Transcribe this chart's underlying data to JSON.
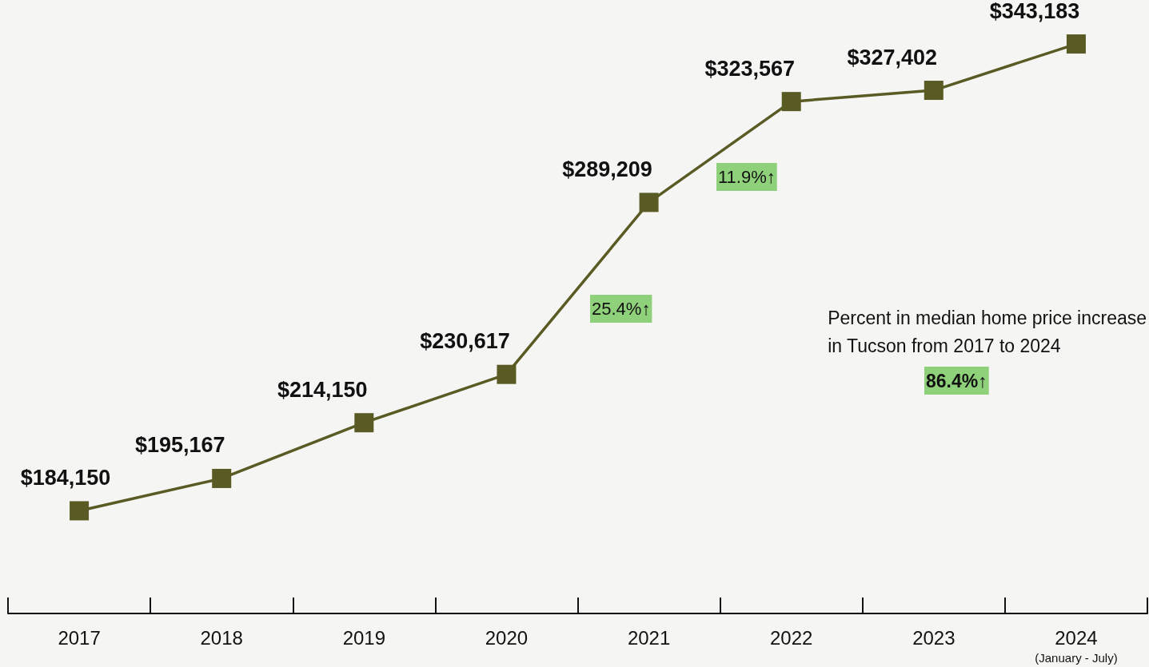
{
  "chart_data": {
    "type": "line",
    "categories": [
      "2017",
      "2018",
      "2019",
      "2020",
      "2021",
      "2022",
      "2023",
      "2024\n(January - July)"
    ],
    "series": [
      {
        "color": "#5a5a24",
        "values": [
          184150,
          195167,
          214150,
          230617,
          289209,
          323567,
          327402,
          343183
        ],
        "value_labels": [
          "$184,150",
          "$195,167",
          "$214,150",
          "$230,617",
          "$289,209",
          "$323,567",
          "$327,402",
          "$343,183"
        ]
      }
    ],
    "tick_labels": "x",
    "grid": false,
    "marker": "square",
    "line_style": "solid",
    "annotations": [
      "11.9%↑",
      "25.4%↑",
      "Percent in median home price increase\nin Tucson from 2017 to 2024",
      "86.4%↑"
    ]
  }
}
